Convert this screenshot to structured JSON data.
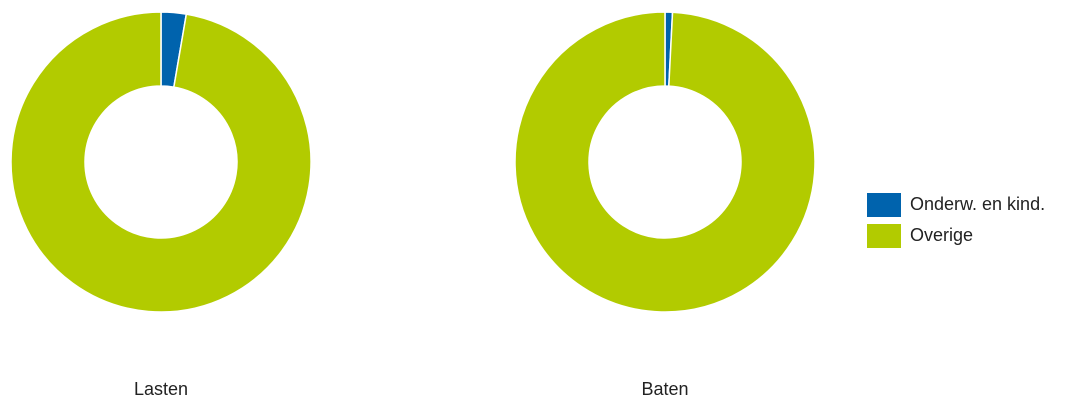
{
  "chart_data": [
    {
      "type": "pie",
      "title": "Lasten",
      "values": [
        2.7,
        97.3
      ]
    },
    {
      "type": "pie",
      "title": "Baten",
      "values": [
        0.8,
        99.2
      ]
    }
  ],
  "legend": {
    "labels": [
      "Onderw. en kind.",
      "Overige"
    ],
    "colors": [
      "#0063ad",
      "#b2cb00"
    ]
  }
}
